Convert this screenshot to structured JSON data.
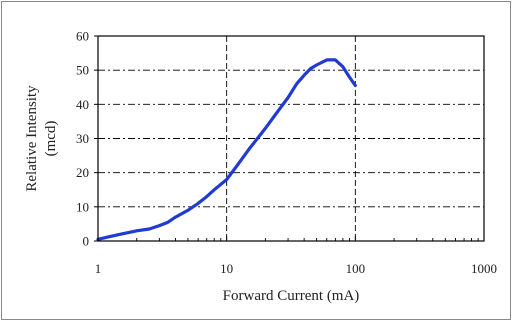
{
  "chart_data": {
    "type": "line",
    "xlabel": "Forward Current (mA)",
    "ylabel_line1": "Relative Intensity",
    "ylabel_line2": "(mcd)",
    "xscale": "log",
    "xlim": [
      1,
      1000
    ],
    "ylim": [
      0,
      60
    ],
    "x_ticks": [
      1,
      10,
      100,
      1000
    ],
    "x_tick_labels": [
      "1",
      "10",
      "100",
      "1000"
    ],
    "y_ticks": [
      0,
      10,
      20,
      30,
      40,
      50,
      60
    ],
    "y_tick_labels": [
      "0",
      "10",
      "20",
      "30",
      "40",
      "50",
      "60"
    ],
    "grid": "dashed",
    "series": [
      {
        "color": "#1f3bd1",
        "x": [
          1,
          1.2,
          1.5,
          2,
          2.5,
          3,
          3.5,
          4,
          5,
          6,
          7,
          8,
          10,
          12,
          15,
          20,
          25,
          30,
          35,
          40,
          45,
          50,
          60,
          70,
          80,
          90,
          100
        ],
        "y": [
          0.5,
          1.2,
          2,
          3,
          3.5,
          4.5,
          5.5,
          7,
          9,
          11,
          13,
          15,
          18,
          22,
          27,
          33,
          38,
          42,
          46,
          48.5,
          50.5,
          51.5,
          53,
          53,
          51,
          48,
          45.5
        ]
      }
    ]
  }
}
